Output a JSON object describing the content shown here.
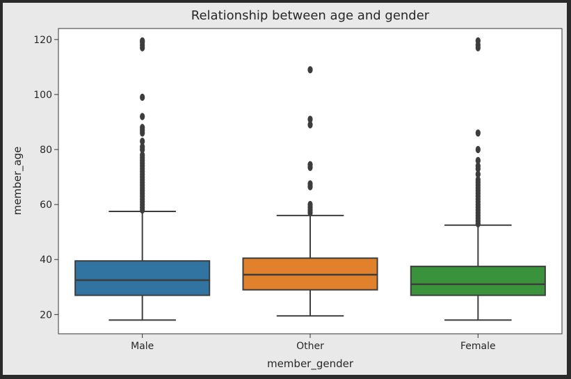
{
  "chart_data": {
    "type": "box",
    "title": "Relationship between age and gender",
    "xlabel": "member_gender",
    "ylabel": "member_age",
    "ylim": [
      13,
      124
    ],
    "yticks": [
      20,
      40,
      60,
      80,
      100,
      120
    ],
    "grid": false,
    "legend": "none",
    "categories": [
      "Male",
      "Other",
      "Female"
    ],
    "colors": [
      "#3274a1",
      "#e1812c",
      "#3a923a"
    ],
    "series": [
      {
        "category": "Male",
        "whisker_low": 18,
        "q1": 27,
        "median": 32.5,
        "q3": 39.5,
        "whisker_high": 57.5,
        "outliers": [
          58,
          59,
          60,
          61,
          62,
          63,
          64,
          65,
          66,
          67,
          68,
          69,
          70,
          71,
          72,
          73,
          74,
          75,
          76,
          77,
          78,
          80,
          81,
          83,
          86,
          87,
          88,
          92,
          99,
          117,
          118,
          119,
          119.5
        ]
      },
      {
        "category": "Other",
        "whisker_low": 19.5,
        "q1": 29,
        "median": 34.5,
        "q3": 40.5,
        "whisker_high": 56,
        "outliers": [
          57,
          58,
          59,
          60,
          66.5,
          67.5,
          73.5,
          74.5,
          89,
          91,
          109
        ]
      },
      {
        "category": "Female",
        "whisker_low": 18,
        "q1": 27,
        "median": 31,
        "q3": 37.5,
        "whisker_high": 52.5,
        "outliers": [
          53,
          54,
          55,
          56,
          57,
          58,
          59,
          60,
          61,
          62,
          63,
          64,
          65,
          66,
          67,
          68,
          69,
          71,
          73,
          74,
          76,
          80,
          86,
          117,
          118,
          119.5
        ]
      }
    ]
  }
}
